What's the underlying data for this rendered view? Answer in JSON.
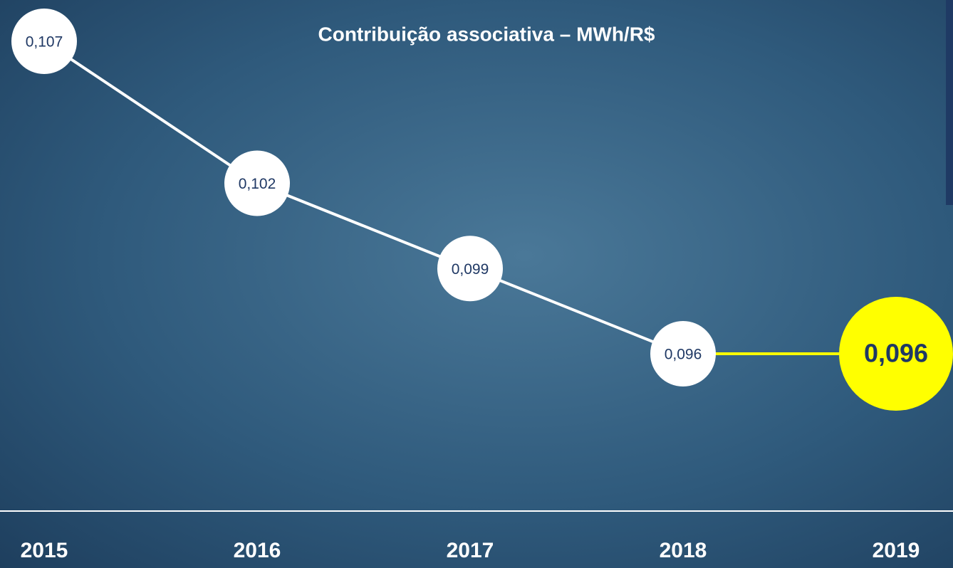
{
  "chart_data": {
    "type": "line",
    "title": "Contribuição associativa – MWh/R$",
    "categories": [
      "2015",
      "2016",
      "2017",
      "2018",
      "2019"
    ],
    "values": [
      0.107,
      0.102,
      0.099,
      0.096,
      0.096
    ],
    "value_labels": [
      "0,107",
      "0,102",
      "0,099",
      "0,096",
      "0,096"
    ],
    "colors": [
      "#ffffff",
      "#ffffff",
      "#ffffff",
      "#ffffff",
      "#ffff00"
    ]
  }
}
